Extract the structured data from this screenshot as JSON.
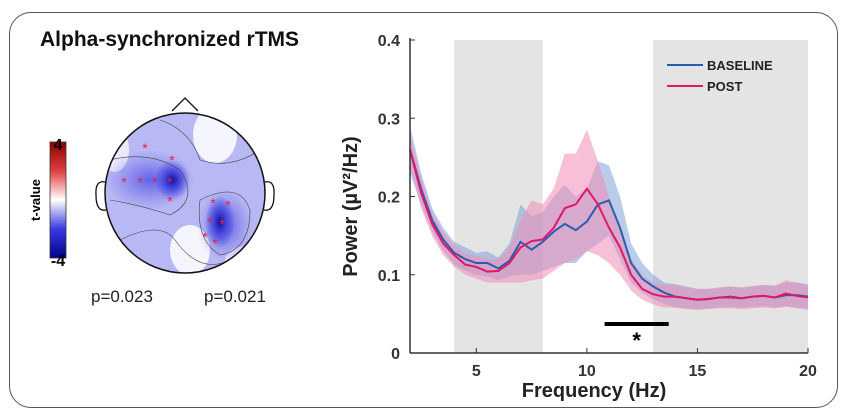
{
  "title": "Alpha-synchronized rTMS",
  "topomap": {
    "colorbar_label": "t-value",
    "colorbar_max": "4",
    "colorbar_min": "-4",
    "colormap": [
      "#00008b",
      "#3a3ae0",
      "#ffffff",
      "#e04040",
      "#8b0000"
    ],
    "p_values": [
      "p=0.023",
      "p=0.021"
    ],
    "marker_color": "#e8204a"
  },
  "chart_data": {
    "type": "line",
    "xlabel": "Frequency (Hz)",
    "ylabel": "Power (µV²/Hz)",
    "xlim": [
      2,
      20
    ],
    "ylim": [
      0,
      0.4
    ],
    "xticks": [
      5,
      10,
      15,
      20
    ],
    "yticks": [
      0,
      0.1,
      0.2,
      0.3,
      0.4
    ],
    "ytick_labels": [
      "0",
      "0.1",
      "0.2",
      "0.3",
      "0.4"
    ],
    "shaded_bands": [
      [
        4,
        8
      ],
      [
        13,
        20
      ]
    ],
    "legend": "top-right",
    "significance": {
      "x_range": [
        10.8,
        13.7
      ],
      "y": 0.037,
      "label": "*"
    },
    "x": [
      2,
      2.5,
      3,
      3.5,
      4,
      4.5,
      5,
      5.5,
      6,
      6.5,
      7,
      7.5,
      8,
      8.5,
      9,
      9.5,
      10,
      10.5,
      11,
      11.5,
      12,
      12.5,
      13,
      13.5,
      14,
      14.5,
      15,
      15.5,
      16,
      16.5,
      17,
      17.5,
      18,
      18.5,
      19,
      19.5,
      20
    ],
    "series": [
      {
        "name": "BASELINE",
        "color": "#2a5db0",
        "band_color": "#7fa3d8",
        "values": [
          0.26,
          0.21,
          0.17,
          0.145,
          0.128,
          0.12,
          0.115,
          0.115,
          0.108,
          0.118,
          0.142,
          0.132,
          0.142,
          0.155,
          0.165,
          0.157,
          0.168,
          0.19,
          0.195,
          0.16,
          0.115,
          0.095,
          0.085,
          0.077,
          0.072,
          0.07,
          0.068,
          0.069,
          0.071,
          0.072,
          0.07,
          0.072,
          0.073,
          0.071,
          0.074,
          0.074,
          0.072
        ],
        "upper": [
          0.29,
          0.23,
          0.185,
          0.16,
          0.142,
          0.135,
          0.128,
          0.13,
          0.122,
          0.14,
          0.19,
          0.175,
          0.18,
          0.2,
          0.215,
          0.2,
          0.21,
          0.245,
          0.24,
          0.2,
          0.14,
          0.115,
          0.1,
          0.09,
          0.088,
          0.085,
          0.082,
          0.082,
          0.083,
          0.085,
          0.083,
          0.085,
          0.087,
          0.086,
          0.09,
          0.09,
          0.088
        ],
        "lower": [
          0.23,
          0.19,
          0.155,
          0.13,
          0.113,
          0.105,
          0.1,
          0.098,
          0.093,
          0.098,
          0.1,
          0.1,
          0.105,
          0.11,
          0.115,
          0.115,
          0.13,
          0.14,
          0.15,
          0.12,
          0.09,
          0.077,
          0.068,
          0.063,
          0.058,
          0.057,
          0.056,
          0.057,
          0.058,
          0.059,
          0.058,
          0.059,
          0.06,
          0.058,
          0.06,
          0.058,
          0.057
        ]
      },
      {
        "name": "POST",
        "color": "#e0186a",
        "band_color": "#f08cb4",
        "values": [
          0.26,
          0.205,
          0.165,
          0.14,
          0.125,
          0.113,
          0.11,
          0.104,
          0.105,
          0.115,
          0.135,
          0.143,
          0.145,
          0.16,
          0.185,
          0.19,
          0.21,
          0.19,
          0.16,
          0.135,
          0.1,
          0.082,
          0.075,
          0.072,
          0.072,
          0.07,
          0.068,
          0.069,
          0.071,
          0.071,
          0.07,
          0.072,
          0.073,
          0.071,
          0.076,
          0.073,
          0.071
        ],
        "upper": [
          0.28,
          0.225,
          0.18,
          0.155,
          0.138,
          0.127,
          0.124,
          0.12,
          0.12,
          0.135,
          0.17,
          0.195,
          0.19,
          0.21,
          0.255,
          0.255,
          0.285,
          0.245,
          0.2,
          0.16,
          0.12,
          0.1,
          0.09,
          0.087,
          0.087,
          0.084,
          0.082,
          0.082,
          0.084,
          0.085,
          0.084,
          0.086,
          0.087,
          0.086,
          0.093,
          0.09,
          0.087
        ],
        "lower": [
          0.24,
          0.185,
          0.15,
          0.125,
          0.11,
          0.1,
          0.095,
          0.09,
          0.09,
          0.09,
          0.09,
          0.093,
          0.095,
          0.105,
          0.115,
          0.12,
          0.13,
          0.125,
          0.115,
          0.1,
          0.08,
          0.068,
          0.062,
          0.058,
          0.058,
          0.056,
          0.055,
          0.056,
          0.057,
          0.057,
          0.056,
          0.057,
          0.058,
          0.057,
          0.059,
          0.057,
          0.055
        ]
      }
    ]
  }
}
